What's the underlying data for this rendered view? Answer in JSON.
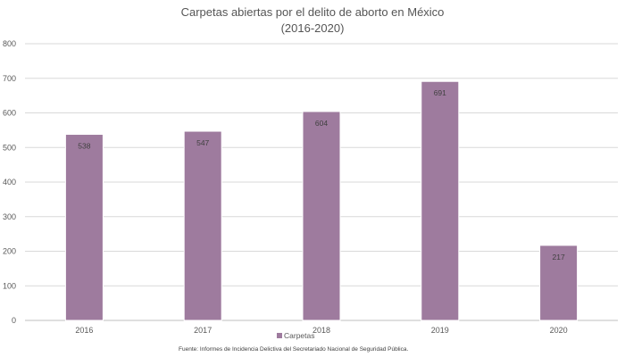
{
  "chart_data": {
    "type": "bar",
    "title_lines": [
      "Carpetas abiertas por el delito de aborto en México",
      "(2016-2020)"
    ],
    "categories": [
      "2016",
      "2017",
      "2018",
      "2019",
      "2020"
    ],
    "series": [
      {
        "name": "Carpetas",
        "values": [
          538,
          547,
          604,
          691,
          217
        ],
        "color": "#9e7b9e"
      }
    ],
    "data_labels": [
      "538",
      "547",
      "604",
      "691",
      "217"
    ],
    "ylim": [
      0,
      800
    ],
    "yticks": [
      0,
      100,
      200,
      300,
      400,
      500,
      600,
      700,
      800
    ],
    "grid": true,
    "legend": "bottom-center",
    "xlabel": "",
    "ylabel": ""
  },
  "source_note": "Fuente: Informes de Incidencia Delictiva del Secretariado Nacional de Seguridad Pública."
}
